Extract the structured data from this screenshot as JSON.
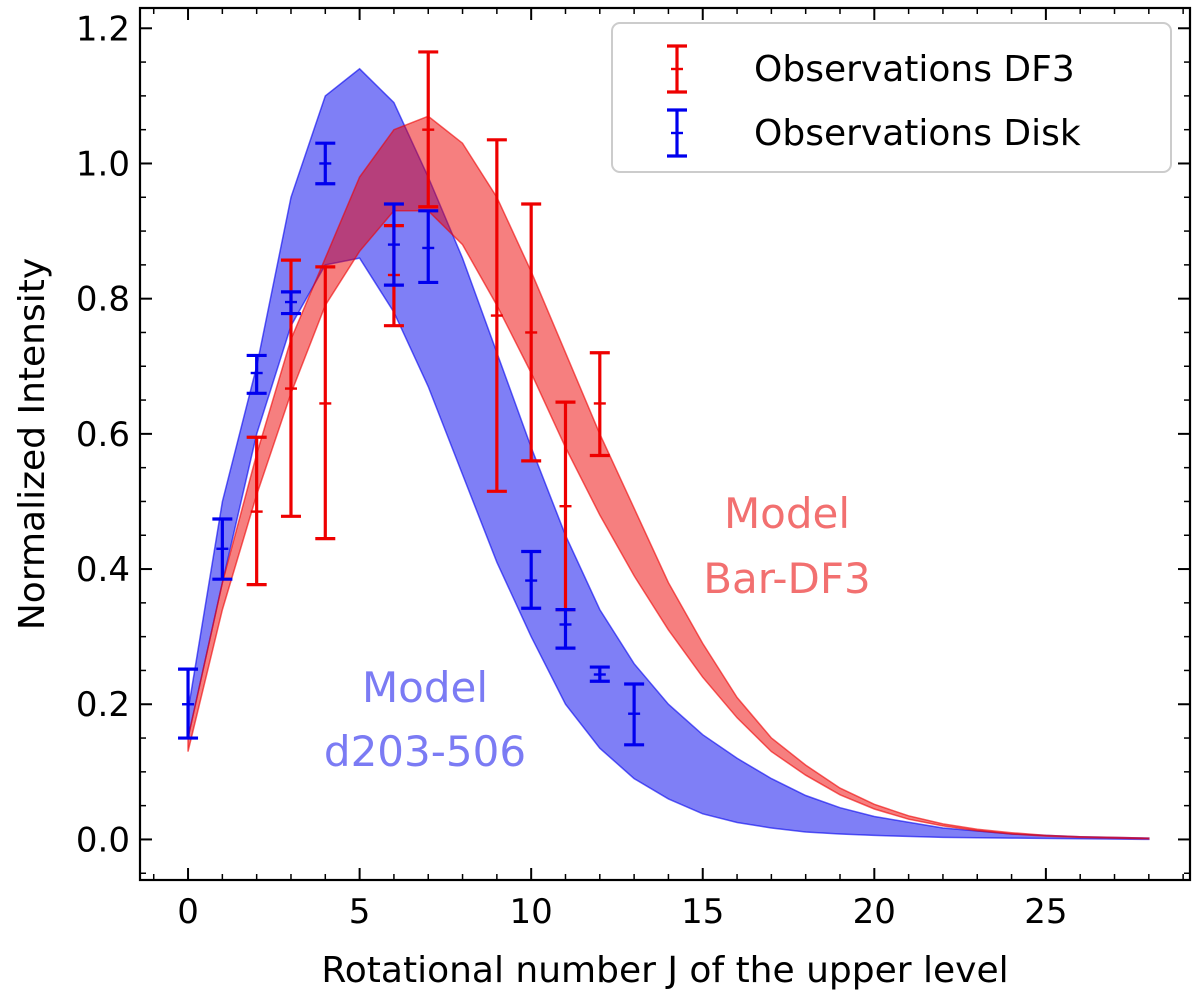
{
  "chart_data": {
    "type": "line",
    "title": "",
    "xlabel": "Rotational number J of the upper level",
    "ylabel": "Normalized Intensity",
    "xlim": [
      -1.4,
      29.2
    ],
    "ylim": [
      -0.06,
      1.23
    ],
    "xticks": [
      0,
      5,
      10,
      15,
      20,
      25
    ],
    "yticks": [
      0.0,
      0.2,
      0.4,
      0.6,
      0.8,
      1.0,
      1.2
    ],
    "xtick_labels": [
      "0",
      "5",
      "10",
      "15",
      "20",
      "25"
    ],
    "ytick_labels": [
      "0.0",
      "0.2",
      "0.4",
      "0.6",
      "0.8",
      "1.0",
      "1.2"
    ],
    "bands": [
      {
        "name": "Model d203-506",
        "label_lines": [
          "Model",
          "d203-506"
        ],
        "color": "#0000ee",
        "text_color": "#7b7bf4",
        "x": [
          0,
          1,
          2,
          3,
          4,
          5,
          6,
          7,
          8,
          9,
          10,
          11,
          12,
          13,
          14,
          15,
          16,
          17,
          18,
          19,
          20,
          22,
          24,
          26,
          28
        ],
        "upper": [
          0.19,
          0.5,
          0.7,
          0.95,
          1.1,
          1.14,
          1.09,
          0.98,
          0.86,
          0.72,
          0.58,
          0.45,
          0.34,
          0.26,
          0.2,
          0.155,
          0.12,
          0.09,
          0.065,
          0.047,
          0.034,
          0.017,
          0.008,
          0.004,
          0.002
        ],
        "lower": [
          0.15,
          0.38,
          0.6,
          0.76,
          0.85,
          0.86,
          0.78,
          0.67,
          0.54,
          0.41,
          0.3,
          0.2,
          0.135,
          0.09,
          0.06,
          0.038,
          0.025,
          0.017,
          0.011,
          0.008,
          0.006,
          0.003,
          0.002,
          0.001,
          0.0
        ]
      },
      {
        "name": "Model Bar-DF3",
        "label_lines": [
          "Model",
          "Bar-DF3"
        ],
        "color": "#ee0000",
        "text_color": "#f27070",
        "x": [
          0,
          1,
          2,
          3,
          4,
          5,
          6,
          7,
          8,
          9,
          10,
          11,
          12,
          13,
          14,
          15,
          16,
          17,
          18,
          19,
          20,
          21,
          22,
          23,
          24,
          25,
          26,
          27,
          28
        ],
        "upper": [
          0.15,
          0.38,
          0.57,
          0.74,
          0.86,
          0.98,
          1.05,
          1.07,
          1.03,
          0.95,
          0.84,
          0.72,
          0.6,
          0.49,
          0.38,
          0.29,
          0.21,
          0.15,
          0.11,
          0.076,
          0.052,
          0.035,
          0.023,
          0.015,
          0.01,
          0.006,
          0.004,
          0.003,
          0.002
        ],
        "lower": [
          0.13,
          0.34,
          0.51,
          0.66,
          0.79,
          0.87,
          0.93,
          0.93,
          0.88,
          0.79,
          0.69,
          0.58,
          0.48,
          0.39,
          0.31,
          0.24,
          0.18,
          0.13,
          0.095,
          0.066,
          0.045,
          0.03,
          0.02,
          0.013,
          0.008,
          0.005,
          0.003,
          0.002,
          0.001
        ]
      }
    ],
    "series": [
      {
        "name": "Observations DF3",
        "color": "#ee0000",
        "x": [
          2,
          3,
          4,
          6,
          7,
          9,
          10,
          11,
          12
        ],
        "y": [
          0.485,
          0.667,
          0.645,
          0.835,
          1.05,
          0.775,
          0.75,
          0.493,
          0.645
        ],
        "yerr_low": [
          0.377,
          0.478,
          0.445,
          0.76,
          0.936,
          0.515,
          0.56,
          0.34,
          0.568
        ],
        "yerr_high": [
          0.595,
          0.857,
          0.847,
          0.908,
          1.165,
          1.035,
          0.94,
          0.647,
          0.72
        ]
      },
      {
        "name": "Observations Disk",
        "color": "#0000ee",
        "x": [
          0,
          1,
          2,
          3,
          4,
          6,
          7,
          10,
          11,
          12,
          13
        ],
        "y": [
          0.2,
          0.43,
          0.69,
          0.795,
          1.0,
          0.88,
          0.875,
          0.383,
          0.318,
          0.244,
          0.186
        ],
        "yerr_low": [
          0.15,
          0.385,
          0.66,
          0.778,
          0.97,
          0.82,
          0.824,
          0.342,
          0.283,
          0.234,
          0.14
        ],
        "yerr_high": [
          0.252,
          0.474,
          0.716,
          0.81,
          1.03,
          0.94,
          0.93,
          0.426,
          0.34,
          0.255,
          0.23
        ]
      }
    ],
    "legend": {
      "position": "top-right",
      "entries": [
        "Observations DF3",
        "Observations Disk"
      ]
    }
  }
}
